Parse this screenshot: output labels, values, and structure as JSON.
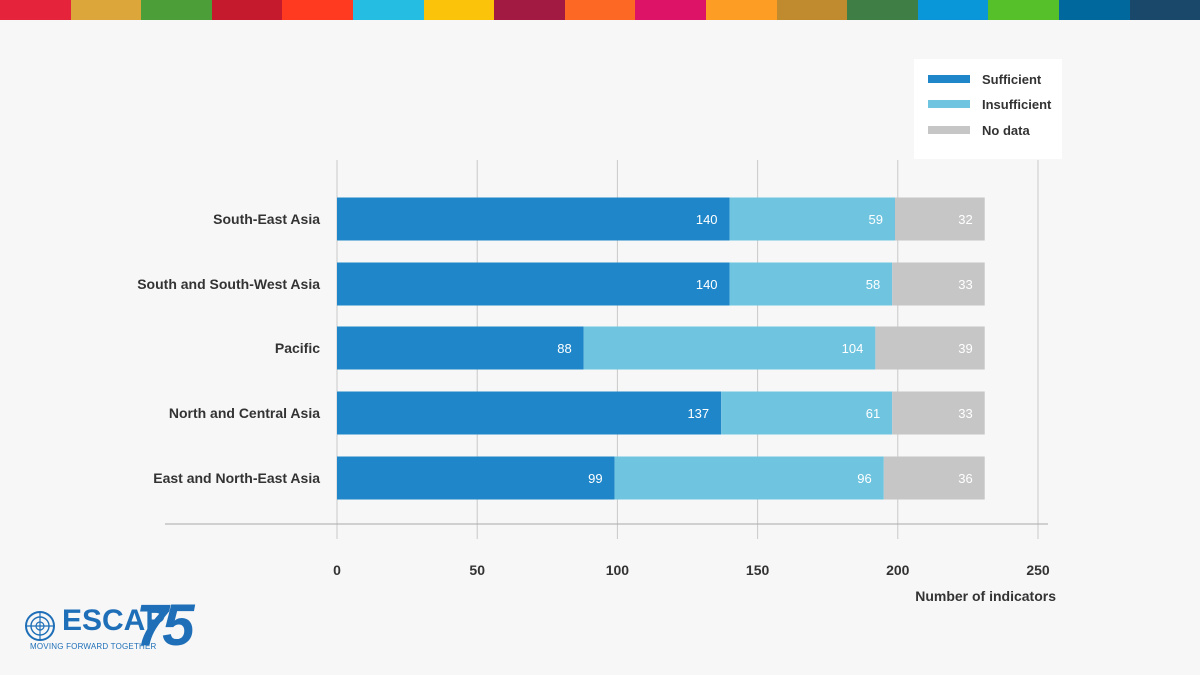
{
  "top_strip_colors": [
    "#e5243b",
    "#dda63a",
    "#4c9f38",
    "#c5192d",
    "#ff3a21",
    "#26bde2",
    "#fcc30b",
    "#a21942",
    "#fd6925",
    "#dd1367",
    "#fd9d24",
    "#bf8b2e",
    "#3f7e44",
    "#0a97d9",
    "#56c02b",
    "#00689d",
    "#19486a"
  ],
  "colors": {
    "sufficient": "#1f87c9",
    "insufficient": "#6fc4e0",
    "no_data": "#c6c6c6",
    "grid": "#c9c9c9",
    "label": "#333333",
    "brand": "#1f6fb8"
  },
  "legend": {
    "placement": "top-right",
    "items": [
      {
        "label": "Sufficient",
        "color": "#1f87c9"
      },
      {
        "label": "Insufficient",
        "color": "#6fc4e0"
      },
      {
        "label": "No data",
        "color": "#c6c6c6"
      }
    ]
  },
  "chart_data": {
    "type": "bar",
    "orientation": "horizontal",
    "stacked": true,
    "title": "",
    "xlabel": "Number of indicators",
    "ylabel": "",
    "xlim": [
      0,
      250
    ],
    "xticks": [
      0,
      50,
      100,
      150,
      200,
      250
    ],
    "grid": "vertical",
    "categories": [
      "South-East Asia",
      "South and South-West Asia",
      "Pacific",
      "North and Central Asia",
      "East and North-East Asia"
    ],
    "series": [
      {
        "name": "Sufficient",
        "values": [
          140,
          140,
          88,
          137,
          99
        ]
      },
      {
        "name": "Insufficient",
        "values": [
          59,
          58,
          104,
          61,
          96
        ]
      },
      {
        "name": "No data",
        "values": [
          32,
          33,
          39,
          33,
          36
        ]
      }
    ]
  },
  "logo": {
    "name": "ESCAP",
    "number": "75",
    "tagline": "MOVING FORWARD TOGETHER",
    "icon": "un-emblem-icon"
  }
}
